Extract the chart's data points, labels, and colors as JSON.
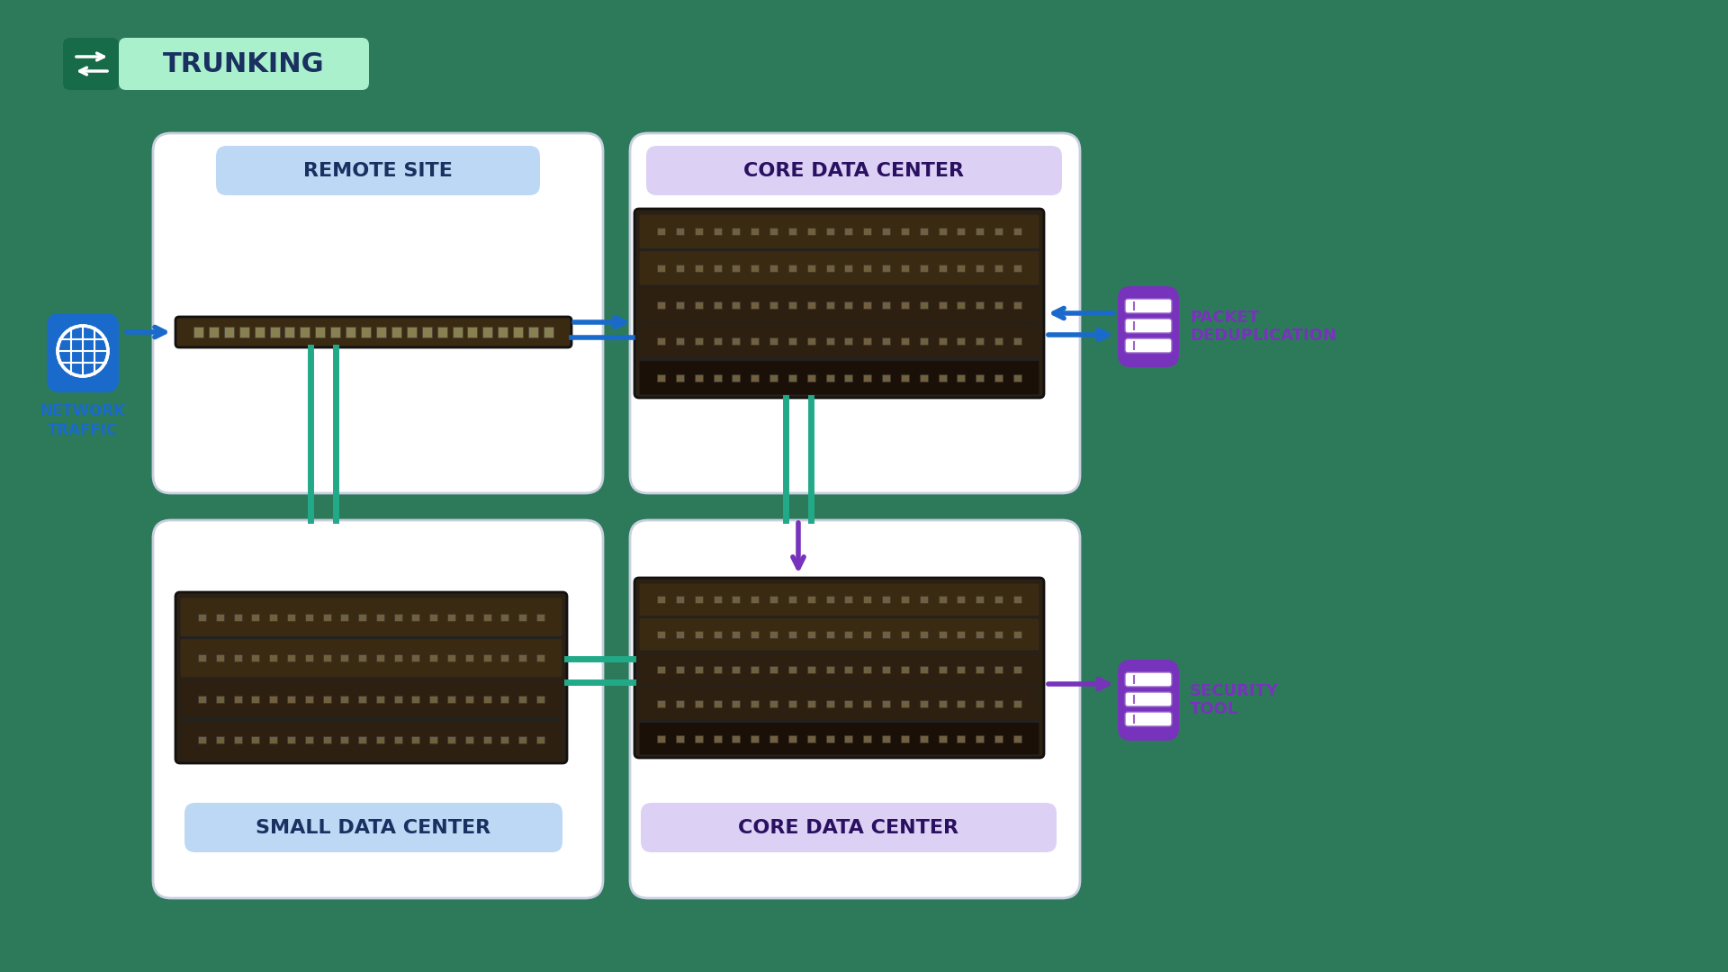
{
  "bg_color": "#2d7a5a",
  "title": "TRUNKING",
  "title_bg": "#aaf0cc",
  "title_icon_bg": "#176b48",
  "title_text_color": "#1a3060",
  "panel_bg": "#ffffff",
  "panel_stroke": "#c8cfe0",
  "remote_site_label": "REMOTE SITE",
  "remote_site_label_bg": "#bcd8f5",
  "remote_site_label_color": "#1a3060",
  "core_dc_label": "CORE DATA CENTER",
  "core_dc_label_bg": "#ddd0f5",
  "core_dc_label_color": "#2a1060",
  "small_dc_label": "SMALL DATA CENTER",
  "small_dc_label_bg": "#bcd8f5",
  "small_dc_label_color": "#1a3060",
  "network_traffic_label": "NETWORK\nTRAFFIC",
  "network_traffic_color": "#1a6acc",
  "packet_dedup_label": "PACKET\nDEDUPLICATION",
  "packet_dedup_color": "#7733bb",
  "security_tool_label": "SECURITY\nTOOL",
  "security_tool_color": "#7733bb",
  "arrow_blue": "#1a6acc",
  "arrow_teal": "#22aa88",
  "arrow_purple": "#7733bb"
}
